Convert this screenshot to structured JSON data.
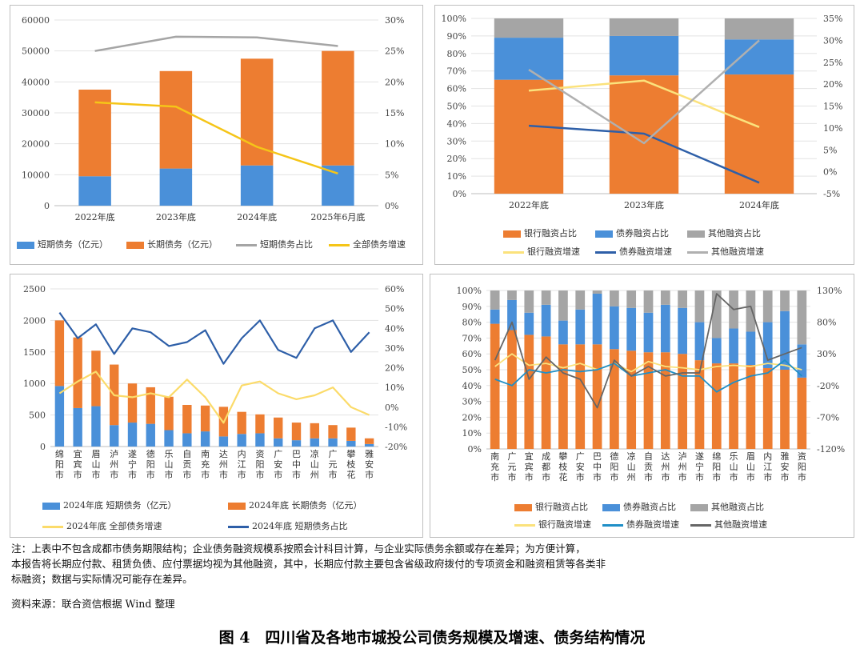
{
  "chart_data": [
    {
      "type": "bar",
      "categories": [
        "2022年底",
        "2023年底",
        "2024年底",
        "2025年6月底"
      ],
      "ylim": [
        0,
        60000
      ],
      "y2lim": [
        0,
        30
      ],
      "yticks": [
        "0",
        "10000",
        "20000",
        "30000",
        "40000",
        "50000",
        "60000"
      ],
      "y2ticks": [
        "0%",
        "5%",
        "10%",
        "15%",
        "20%",
        "25%",
        "30%"
      ],
      "series": [
        {
          "name": "短期债务（亿元）",
          "type": "stacked-bar",
          "color": "#4a90d9",
          "values": [
            9500,
            12000,
            13000,
            13000
          ]
        },
        {
          "name": "长期债务（亿元）",
          "type": "stacked-bar",
          "color": "#ed7d31",
          "values": [
            28000,
            31500,
            34500,
            37000
          ]
        },
        {
          "name": "短期债务占比",
          "type": "line",
          "axis": "right",
          "color": "#a5a5a5",
          "values": [
            25,
            27.3,
            27.2,
            25.8
          ]
        },
        {
          "name": "全部债务增速",
          "type": "line",
          "axis": "right",
          "color": "#f5c518",
          "values": [
            16.7,
            16.0,
            9.5,
            5.2
          ]
        }
      ]
    },
    {
      "type": "bar",
      "categories": [
        "2022年底",
        "2023年底",
        "2024年底"
      ],
      "ylim": [
        0,
        100
      ],
      "y2lim": [
        -5,
        35
      ],
      "yticks": [
        "0%",
        "10%",
        "20%",
        "30%",
        "40%",
        "50%",
        "60%",
        "70%",
        "80%",
        "90%",
        "100%"
      ],
      "y2ticks": [
        "-5%",
        "0%",
        "5%",
        "10%",
        "15%",
        "20%",
        "25%",
        "30%",
        "35%"
      ],
      "series": [
        {
          "name": "银行融资占比",
          "type": "stacked-bar",
          "color": "#ed7d31",
          "values": [
            65,
            67.5,
            68
          ]
        },
        {
          "name": "债券融资占比",
          "type": "stacked-bar",
          "color": "#4a90d9",
          "values": [
            24,
            22.5,
            20
          ]
        },
        {
          "name": "其他融资占比",
          "type": "stacked-bar",
          "color": "#a5a5a5",
          "values": [
            11,
            10,
            12
          ]
        },
        {
          "name": "银行融资增速",
          "type": "line",
          "axis": "right",
          "color": "#fbe27c",
          "values": [
            18.5,
            20.8,
            10.2
          ]
        },
        {
          "name": "债券融资增速",
          "type": "line",
          "axis": "right",
          "color": "#2e5fa8",
          "values": [
            10.5,
            8.7,
            -2.5
          ]
        },
        {
          "name": "其他融资增速",
          "type": "line",
          "axis": "right",
          "color": "#b0b0b0",
          "values": [
            23.3,
            6.5,
            30
          ]
        }
      ]
    },
    {
      "type": "bar",
      "categories": [
        "绵阳市",
        "宜宾市",
        "眉山市",
        "泸州市",
        "遂宁市",
        "德阳市",
        "乐山市",
        "自贡市",
        "南充市",
        "达州市",
        "内江市",
        "资阳市",
        "广安市",
        "巴中市",
        "凉山州",
        "广元市",
        "攀枝花",
        "雅安市"
      ],
      "ylim": [
        0,
        2500
      ],
      "y2lim": [
        -20,
        60
      ],
      "yticks": [
        "0",
        "500",
        "1000",
        "1500",
        "2000",
        "2500"
      ],
      "y2ticks": [
        "-20%",
        "-10%",
        "0%",
        "10%",
        "20%",
        "30%",
        "40%",
        "50%",
        "60%"
      ],
      "series": [
        {
          "name": "2024年底 短期债务（亿元）",
          "type": "stacked-bar",
          "color": "#4a90d9",
          "values": [
            960,
            610,
            640,
            340,
            380,
            360,
            260,
            210,
            240,
            160,
            200,
            210,
            130,
            100,
            130,
            130,
            90,
            40
          ]
        },
        {
          "name": "2024年底 长期债务（亿元）",
          "type": "stacked-bar",
          "color": "#ed7d31",
          "values": [
            1040,
            1120,
            880,
            960,
            620,
            580,
            530,
            450,
            410,
            470,
            350,
            300,
            330,
            280,
            240,
            210,
            210,
            90
          ]
        },
        {
          "name": "2024年底 全部债务增速",
          "type": "line",
          "axis": "right",
          "color": "#fbdb6a",
          "values": [
            7,
            13,
            18,
            6,
            5,
            7,
            5,
            14,
            5,
            -8,
            11,
            13,
            7,
            4,
            6,
            10,
            0,
            -4
          ]
        },
        {
          "name": "2024年底 短期债务占比",
          "type": "line",
          "axis": "right",
          "color": "#2e5fa8",
          "values": [
            48,
            35,
            42,
            27,
            40,
            38,
            31,
            33,
            39,
            22,
            35,
            44,
            29,
            25,
            40,
            44,
            28,
            38
          ]
        }
      ]
    },
    {
      "type": "bar",
      "categories": [
        "南充市",
        "广元市",
        "宜宾市",
        "成都市",
        "攀枝花",
        "广安市",
        "巴中市",
        "德阳市",
        "凉山州",
        "自贡市",
        "达州市",
        "泸州市",
        "遂宁市",
        "绵阳市",
        "乐山市",
        "眉山市",
        "内江市",
        "雅安市",
        "资阳市"
      ],
      "ylim": [
        0,
        100
      ],
      "y2lim": [
        -120,
        130
      ],
      "yticks": [
        "0%",
        "10%",
        "20%",
        "30%",
        "40%",
        "50%",
        "60%",
        "70%",
        "80%",
        "90%",
        "100%"
      ],
      "y2ticks": [
        "-120%",
        "-70%",
        "-20%",
        "30%",
        "80%",
        "130%"
      ],
      "series": [
        {
          "name": "银行融资占比",
          "type": "stacked-bar",
          "color": "#ed7d31",
          "values": [
            79,
            75,
            72,
            71,
            66,
            66,
            66,
            63,
            62,
            61,
            61,
            60,
            56,
            54,
            54,
            53,
            51,
            50,
            45
          ]
        },
        {
          "name": "债券融资占比",
          "type": "stacked-bar",
          "color": "#4a90d9",
          "values": [
            9,
            19,
            14,
            20,
            15,
            22,
            32,
            27,
            27,
            25,
            30,
            29,
            24,
            16,
            22,
            21,
            29,
            37,
            21
          ]
        },
        {
          "name": "其他融资占比",
          "type": "stacked-bar",
          "color": "#a5a5a5",
          "values": [
            12,
            6,
            14,
            9,
            19,
            12,
            2,
            10,
            11,
            14,
            9,
            11,
            20,
            30,
            24,
            26,
            20,
            13,
            34
          ]
        },
        {
          "name": "银行融资增速",
          "type": "line",
          "axis": "right",
          "color": "#fbe27c",
          "values": [
            10,
            30,
            12,
            15,
            8,
            15,
            5,
            15,
            2,
            18,
            10,
            8,
            5,
            10,
            12,
            10,
            15,
            12,
            5
          ]
        },
        {
          "name": "债券融资增速",
          "type": "line",
          "axis": "right",
          "color": "#1f8fc7",
          "values": [
            -10,
            -20,
            5,
            0,
            5,
            2,
            5,
            15,
            -5,
            0,
            5,
            -5,
            -5,
            -30,
            -15,
            -5,
            0,
            20,
            -5
          ]
        },
        {
          "name": "其他融资增速",
          "type": "line",
          "axis": "right",
          "color": "#666666",
          "values": [
            20,
            80,
            -10,
            25,
            0,
            -10,
            -55,
            20,
            -5,
            10,
            -5,
            0,
            0,
            125,
            100,
            105,
            20,
            30,
            40
          ]
        }
      ]
    }
  ],
  "note": {
    "line1": "注：上表中不包含成都市债务期限结构；企业债务融资规模系按照会计科目计算，与企业实际债务余额或存在差异；为方便计算，",
    "line2": "本报告将长期应付款、租赁负债、应付票据均视为其他融资，其中，长期应付款主要包含省级政府拨付的专项资金和融资租赁等各类非",
    "line3": "标融资；数据与实际情况可能存在差异。",
    "source": "资料来源：联合资信根据 Wind 整理"
  },
  "caption": "图 4　四川省及各地市城投公司债务规模及增速、债务结构情况"
}
